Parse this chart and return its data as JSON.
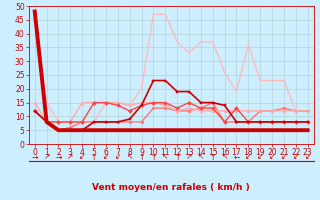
{
  "xlabel": "Vent moyen/en rafales ( km/h )",
  "background_color": "#cceeff",
  "grid_color": "#aacccc",
  "xlim": [
    -0.5,
    23.5
  ],
  "ylim": [
    0,
    50
  ],
  "yticks": [
    0,
    5,
    10,
    15,
    20,
    25,
    30,
    35,
    40,
    45,
    50
  ],
  "xticks": [
    0,
    1,
    2,
    3,
    4,
    5,
    6,
    7,
    8,
    9,
    10,
    11,
    12,
    13,
    14,
    15,
    16,
    17,
    18,
    19,
    20,
    21,
    22,
    23
  ],
  "series": [
    {
      "y": [
        48,
        8,
        5,
        5,
        5,
        5,
        5,
        5,
        5,
        5,
        5,
        5,
        5,
        5,
        5,
        5,
        5,
        5,
        5,
        5,
        5,
        5,
        5,
        5
      ],
      "color": "#cc0000",
      "linewidth": 2.8,
      "marker": null,
      "markersize": 0,
      "alpha": 1.0,
      "zorder": 6
    },
    {
      "y": [
        12,
        8,
        5,
        5,
        5,
        8,
        8,
        8,
        9,
        14,
        23,
        23,
        19,
        19,
        15,
        15,
        14,
        8,
        8,
        8,
        8,
        8,
        8,
        8
      ],
      "color": "#cc0000",
      "linewidth": 1.2,
      "marker": "s",
      "markersize": 2.0,
      "alpha": 1.0,
      "zorder": 5
    },
    {
      "y": [
        12,
        8,
        8,
        8,
        8,
        15,
        15,
        14,
        12,
        14,
        15,
        15,
        13,
        15,
        13,
        13,
        8,
        13,
        8,
        8,
        8,
        8,
        8,
        8
      ],
      "color": "#ff4444",
      "linewidth": 1.0,
      "marker": "D",
      "markersize": 2.0,
      "alpha": 1.0,
      "zorder": 4
    },
    {
      "y": [
        12,
        8,
        5,
        6,
        8,
        8,
        8,
        8,
        8,
        8,
        13,
        13,
        12,
        12,
        13,
        15,
        8,
        8,
        8,
        12,
        12,
        13,
        12,
        12
      ],
      "color": "#ff7777",
      "linewidth": 1.0,
      "marker": "o",
      "markersize": 2.0,
      "alpha": 1.0,
      "zorder": 3
    },
    {
      "y": [
        15,
        8,
        8,
        8,
        15,
        15,
        15,
        15,
        14,
        15,
        15,
        14,
        12,
        13,
        12,
        12,
        12,
        12,
        12,
        12,
        12,
        12,
        12,
        12
      ],
      "color": "#ffaaaa",
      "linewidth": 1.0,
      "marker": "^",
      "markersize": 2.0,
      "alpha": 1.0,
      "zorder": 3
    },
    {
      "y": [
        48,
        15,
        8,
        8,
        8,
        8,
        15,
        15,
        14,
        20,
        47,
        47,
        37,
        33,
        37,
        37,
        26,
        19,
        36,
        23,
        23,
        23,
        12,
        12
      ],
      "color": "#ffbbbb",
      "linewidth": 1.0,
      "marker": null,
      "markersize": 0,
      "alpha": 1.0,
      "zorder": 2
    }
  ],
  "arrows": [
    "→",
    "↗",
    "→",
    "↗",
    "↙",
    "↑",
    "↙",
    "↙",
    "↖",
    "↑",
    "↑",
    "↖",
    "↑",
    "↗",
    "↖",
    "↑",
    "↖",
    "←",
    "↙",
    "↙",
    "↙",
    "↙",
    "↙",
    "↙"
  ],
  "xlabel_color": "#cc0000",
  "xlabel_fontsize": 6.5,
  "tick_color": "#cc0000",
  "tick_fontsize": 5.5,
  "arrow_fontsize": 5.5,
  "arrow_color": "#cc0000"
}
